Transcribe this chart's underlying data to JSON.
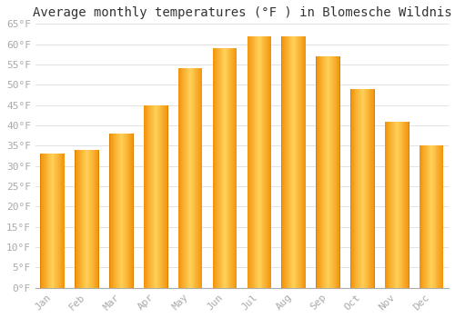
{
  "title": "Average monthly temperatures (°F ) in Blomesche Wildnis",
  "months": [
    "Jan",
    "Feb",
    "Mar",
    "Apr",
    "May",
    "Jun",
    "Jul",
    "Aug",
    "Sep",
    "Oct",
    "Nov",
    "Dec"
  ],
  "values": [
    33,
    34,
    38,
    45,
    54,
    59,
    62,
    62,
    57,
    49,
    41,
    35
  ],
  "bar_color_left": "#F5A623",
  "bar_color_center": "#FFD060",
  "bar_color_right": "#E8900A",
  "background_color": "#FFFFFF",
  "grid_color": "#DDDDDD",
  "ylim": [
    0,
    65
  ],
  "yticks": [
    0,
    5,
    10,
    15,
    20,
    25,
    30,
    35,
    40,
    45,
    50,
    55,
    60,
    65
  ],
  "ytick_labels": [
    "0°F",
    "5°F",
    "10°F",
    "15°F",
    "20°F",
    "25°F",
    "30°F",
    "35°F",
    "40°F",
    "45°F",
    "50°F",
    "55°F",
    "60°F",
    "65°F"
  ],
  "title_fontsize": 10,
  "tick_fontsize": 8,
  "tick_color": "#AAAAAA",
  "font_family": "monospace",
  "bar_width": 0.7
}
